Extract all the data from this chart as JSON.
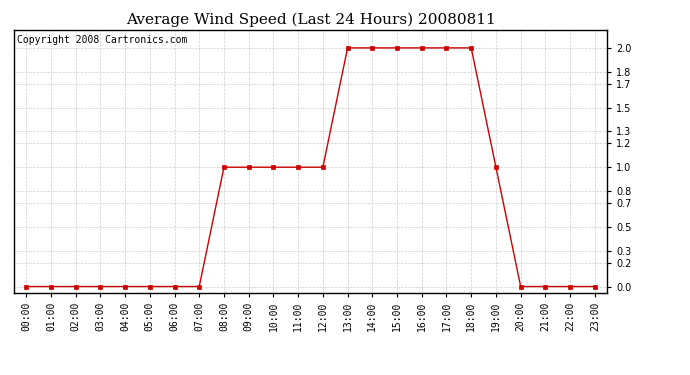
{
  "title": "Average Wind Speed (Last 24 Hours) 20080811",
  "copyright_text": "Copyright 2008 Cartronics.com",
  "x_labels": [
    "00:00",
    "01:00",
    "02:00",
    "03:00",
    "04:00",
    "05:00",
    "06:00",
    "07:00",
    "08:00",
    "09:00",
    "10:00",
    "11:00",
    "12:00",
    "13:00",
    "14:00",
    "15:00",
    "16:00",
    "17:00",
    "18:00",
    "19:00",
    "20:00",
    "21:00",
    "22:00",
    "23:00"
  ],
  "hours": [
    0,
    1,
    2,
    3,
    4,
    5,
    6,
    7,
    8,
    9,
    10,
    11,
    12,
    13,
    14,
    15,
    16,
    17,
    18,
    19,
    20,
    21,
    22,
    23
  ],
  "values": [
    0.0,
    0.0,
    0.0,
    0.0,
    0.0,
    0.0,
    0.0,
    0.0,
    1.0,
    1.0,
    1.0,
    1.0,
    1.0,
    2.0,
    2.0,
    2.0,
    2.0,
    2.0,
    2.0,
    1.0,
    0.0,
    0.0,
    0.0,
    0.0
  ],
  "line_color": "#cc0000",
  "marker_color": "#cc0000",
  "bg_color": "#ffffff",
  "grid_color": "#cccccc",
  "yticks": [
    0.0,
    0.2,
    0.3,
    0.5,
    0.7,
    0.8,
    1.0,
    1.2,
    1.3,
    1.5,
    1.7,
    1.8,
    2.0
  ],
  "ylim": [
    -0.05,
    2.15
  ],
  "title_fontsize": 11,
  "copyright_fontsize": 7,
  "tick_fontsize": 7,
  "xlim_min": -0.5,
  "xlim_max": 23.5
}
